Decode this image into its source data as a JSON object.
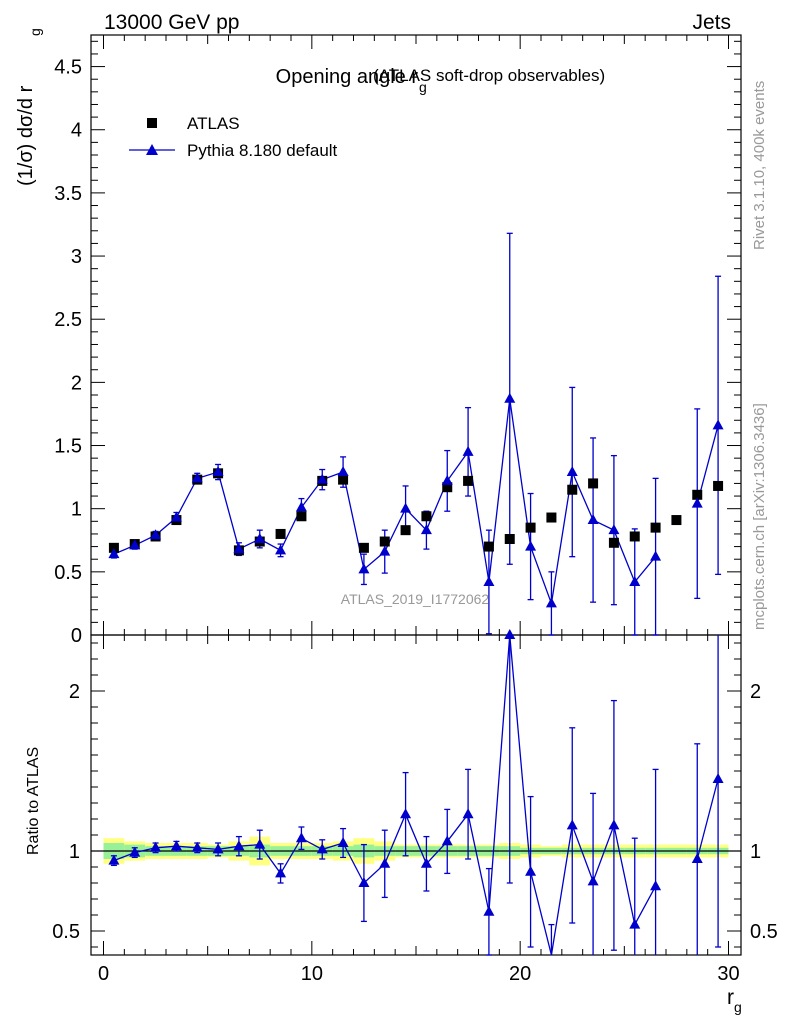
{
  "header": {
    "energy_label": "13000 GeV pp",
    "category_label": "Jets",
    "rivet_label": "Rivet 3.1.10,  400k events",
    "mcplots_label": "mcplots.cern.ch [arXiv:1306.3436]",
    "analysis_id": "ATLAS_2019_I1772062"
  },
  "colors": {
    "data": "#000000",
    "mc": "#0000cc",
    "band_inner": "#98f098",
    "band_outer": "#ffff80"
  },
  "chart_data": [
    {
      "type": "scatter",
      "panel": "main",
      "title_main": "Opening angle r",
      "title_sub": "g",
      "title_paren": "(ATLAS soft-drop observables)",
      "ylabel_text": "(1/σ) dσ/d r",
      "ylabel_sub": "g",
      "xlim": [
        -0.6,
        30.6
      ],
      "ylim": [
        0,
        4.75
      ],
      "y_ticks": [
        0,
        0.5,
        1,
        1.5,
        2,
        2.5,
        3,
        3.5,
        4,
        4.5
      ],
      "y_tick_labels": [
        "0",
        "0.5",
        "1",
        "1.5",
        "2",
        "2.5",
        "3",
        "3.5",
        "4",
        "4.5"
      ],
      "legend": [
        "ATLAS",
        "Pythia 8.180 default"
      ],
      "series": [
        {
          "name": "ATLAS",
          "marker": "square",
          "x": [
            0.5,
            1.5,
            2.5,
            3.5,
            4.5,
            5.5,
            6.5,
            7.5,
            8.5,
            9.5,
            10.5,
            11.5,
            12.5,
            13.5,
            14.5,
            15.5,
            16.5,
            17.5,
            18.5,
            19.5,
            20.5,
            21.5,
            22.5,
            23.5,
            24.5,
            25.5,
            26.5,
            27.5,
            28.5,
            29.5
          ],
          "y": [
            0.69,
            0.72,
            0.78,
            0.91,
            1.23,
            1.28,
            0.67,
            0.74,
            0.8,
            0.94,
            1.22,
            1.23,
            0.69,
            0.74,
            0.83,
            0.94,
            1.17,
            1.22,
            0.7,
            0.76,
            0.85,
            0.93,
            1.15,
            1.2,
            0.73,
            0.78,
            0.85,
            0.91,
            1.11,
            1.18
          ]
        },
        {
          "name": "Pythia 8.180 default",
          "marker": "triangle",
          "x": [
            0.5,
            1.5,
            2.5,
            3.5,
            4.5,
            5.5,
            6.5,
            7.5,
            8.5,
            9.5,
            10.5,
            11.5,
            12.5,
            13.5,
            14.5,
            15.5,
            16.5,
            17.5,
            18.5,
            19.5,
            20.5,
            21.5,
            22.5,
            23.5,
            24.5,
            25.5,
            26.5,
            27.5,
            28.5,
            29.5
          ],
          "y": [
            0.64,
            0.71,
            0.79,
            0.93,
            1.24,
            1.29,
            0.68,
            0.76,
            0.67,
            1.01,
            1.23,
            1.29,
            0.52,
            0.66,
            1.0,
            0.83,
            1.22,
            1.45,
            0.42,
            1.87,
            0.7,
            0.25,
            1.29,
            0.91,
            0.83,
            0.42,
            0.62,
            null,
            1.04,
            1.66
          ],
          "err": [
            0.03,
            0.03,
            0.03,
            0.04,
            0.04,
            0.06,
            0.05,
            0.07,
            0.05,
            0.07,
            0.08,
            0.12,
            0.12,
            0.17,
            0.18,
            0.15,
            0.24,
            0.35,
            0.41,
            1.31,
            0.42,
            0.25,
            0.67,
            0.65,
            0.59,
            0.42,
            0.62,
            null,
            0.75,
            1.18
          ]
        }
      ]
    },
    {
      "type": "scatter",
      "panel": "ratio",
      "ylabel": "Ratio to ATLAS",
      "xlabel_text": "r",
      "xlabel_sub": "g",
      "xlim": [
        -0.6,
        30.6
      ],
      "ylim": [
        0.35,
        2.35
      ],
      "x_ticks": [
        0,
        10,
        20,
        30
      ],
      "x_tick_labels": [
        "0",
        "10",
        "20",
        "30"
      ],
      "y_ticks": [
        0.5,
        1,
        2
      ],
      "y_tick_labels": [
        "0.5",
        "1",
        "2"
      ],
      "bands": {
        "x_edges": [
          0,
          1,
          2,
          3,
          4,
          5,
          6,
          7,
          8,
          9,
          10,
          11,
          12,
          13,
          14,
          15,
          16,
          17,
          18,
          19,
          20,
          21,
          22,
          23,
          24,
          25,
          26,
          27,
          28,
          29,
          30
        ],
        "inner": [
          0.05,
          0.04,
          0.03,
          0.03,
          0.03,
          0.03,
          0.03,
          0.04,
          0.03,
          0.03,
          0.03,
          0.03,
          0.04,
          0.03,
          0.03,
          0.03,
          0.03,
          0.03,
          0.03,
          0.03,
          0.02,
          0.02,
          0.02,
          0.02,
          0.02,
          0.02,
          0.02,
          0.02,
          0.02,
          0.02
        ],
        "outer": [
          0.08,
          0.06,
          0.05,
          0.05,
          0.05,
          0.04,
          0.06,
          0.09,
          0.05,
          0.05,
          0.05,
          0.06,
          0.08,
          0.06,
          0.04,
          0.04,
          0.04,
          0.04,
          0.04,
          0.05,
          0.04,
          0.03,
          0.04,
          0.04,
          0.04,
          0.04,
          0.04,
          0.04,
          0.04,
          0.04
        ]
      },
      "series": [
        {
          "name": "Pythia 8.180 default",
          "x": [
            0.5,
            1.5,
            2.5,
            3.5,
            4.5,
            5.5,
            6.5,
            7.5,
            8.5,
            9.5,
            10.5,
            11.5,
            12.5,
            13.5,
            14.5,
            15.5,
            16.5,
            17.5,
            18.5,
            19.5,
            20.5,
            21.5,
            22.5,
            23.5,
            24.5,
            25.5,
            26.5,
            27.5,
            28.5,
            29.5
          ],
          "y": [
            0.94,
            0.99,
            1.02,
            1.03,
            1.02,
            1.01,
            1.03,
            1.04,
            0.86,
            1.08,
            1.01,
            1.05,
            0.8,
            0.92,
            1.23,
            0.92,
            1.06,
            1.23,
            0.62,
            2.35,
            0.87,
            0.27,
            1.16,
            0.81,
            1.16,
            0.54,
            0.78,
            null,
            0.95,
            1.45
          ],
          "err": [
            0.03,
            0.03,
            0.03,
            0.03,
            0.03,
            0.04,
            0.06,
            0.09,
            0.06,
            0.07,
            0.06,
            0.09,
            0.24,
            0.21,
            0.26,
            0.17,
            0.2,
            0.28,
            0.27,
            1.55,
            0.47,
            0.27,
            0.61,
            0.55,
            0.78,
            0.54,
            0.73,
            null,
            0.72,
            1.05
          ]
        }
      ]
    }
  ]
}
